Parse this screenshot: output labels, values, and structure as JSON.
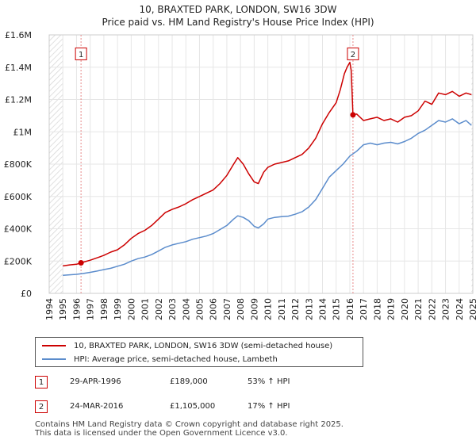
{
  "chart_data": {
    "type": "line",
    "title": "10, BRAXTED PARK, LONDON, SW16 3DW",
    "subtitle": "Price paid vs. HM Land Registry's House Price Index (HPI)",
    "xlim": [
      1994,
      2025
    ],
    "ylim": [
      0,
      1600000
    ],
    "x_ticks": [
      "1994",
      "1995",
      "1996",
      "1997",
      "1998",
      "1999",
      "2000",
      "2001",
      "2002",
      "2003",
      "2004",
      "2005",
      "2006",
      "2007",
      "2008",
      "2009",
      "2010",
      "2011",
      "2012",
      "2013",
      "2014",
      "2015",
      "2016",
      "2017",
      "2018",
      "2019",
      "2020",
      "2021",
      "2022",
      "2023",
      "2024",
      "2025"
    ],
    "y_ticks": [
      {
        "value": 0,
        "label": "£0"
      },
      {
        "value": 200000,
        "label": "£200K"
      },
      {
        "value": 400000,
        "label": "£400K"
      },
      {
        "value": 600000,
        "label": "£600K"
      },
      {
        "value": 800000,
        "label": "£800K"
      },
      {
        "value": 1000000,
        "label": "£1M"
      },
      {
        "value": 1200000,
        "label": "£1.2M"
      },
      {
        "value": 1400000,
        "label": "£1.4M"
      },
      {
        "value": 1600000,
        "label": "£1.6M"
      }
    ],
    "series": [
      {
        "name": "10, BRAXTED PARK, LONDON, SW16 3DW (semi-detached house)",
        "color": "#cc0000",
        "x": [
          1995.0,
          1995.5,
          1996.0,
          1996.33,
          1996.6,
          1997.0,
          1997.5,
          1998.0,
          1998.5,
          1999.0,
          1999.5,
          2000.0,
          2000.5,
          2001.0,
          2001.5,
          2002.0,
          2002.5,
          2003.0,
          2003.5,
          2004.0,
          2004.5,
          2005.0,
          2005.5,
          2006.0,
          2006.5,
          2007.0,
          2007.5,
          2007.8,
          2008.2,
          2008.6,
          2009.0,
          2009.3,
          2009.7,
          2010.0,
          2010.5,
          2011.0,
          2011.5,
          2012.0,
          2012.5,
          2013.0,
          2013.5,
          2014.0,
          2014.5,
          2015.0,
          2015.3,
          2015.6,
          2015.8,
          2016.0,
          2016.1,
          2016.23,
          2016.5,
          2017.0,
          2017.5,
          2018.0,
          2018.5,
          2019.0,
          2019.5,
          2020.0,
          2020.5,
          2021.0,
          2021.5,
          2022.0,
          2022.5,
          2023.0,
          2023.5,
          2024.0,
          2024.5,
          2024.9
        ],
        "y": [
          170000,
          176000,
          180000,
          189000,
          196000,
          205000,
          220000,
          235000,
          255000,
          270000,
          300000,
          340000,
          370000,
          390000,
          420000,
          460000,
          500000,
          520000,
          535000,
          555000,
          580000,
          600000,
          620000,
          640000,
          680000,
          730000,
          800000,
          840000,
          800000,
          740000,
          690000,
          680000,
          750000,
          780000,
          800000,
          810000,
          820000,
          840000,
          860000,
          900000,
          960000,
          1050000,
          1120000,
          1180000,
          1260000,
          1360000,
          1400000,
          1430000,
          1380000,
          1105000,
          1110000,
          1070000,
          1080000,
          1090000,
          1070000,
          1080000,
          1060000,
          1090000,
          1100000,
          1130000,
          1190000,
          1170000,
          1240000,
          1230000,
          1250000,
          1220000,
          1240000,
          1230000
        ]
      },
      {
        "name": "HPI: Average price, semi-detached house, Lambeth",
        "color": "#5b8ccc",
        "x": [
          1995.0,
          1995.5,
          1996.0,
          1996.5,
          1997.0,
          1997.5,
          1998.0,
          1998.5,
          1999.0,
          1999.5,
          2000.0,
          2000.5,
          2001.0,
          2001.5,
          2002.0,
          2002.5,
          2003.0,
          2003.5,
          2004.0,
          2004.5,
          2005.0,
          2005.5,
          2006.0,
          2006.5,
          2007.0,
          2007.5,
          2007.8,
          2008.2,
          2008.6,
          2009.0,
          2009.3,
          2009.7,
          2010.0,
          2010.5,
          2011.0,
          2011.5,
          2012.0,
          2012.5,
          2013.0,
          2013.5,
          2014.0,
          2014.5,
          2015.0,
          2015.5,
          2016.0,
          2016.5,
          2017.0,
          2017.5,
          2018.0,
          2018.5,
          2019.0,
          2019.5,
          2020.0,
          2020.5,
          2021.0,
          2021.5,
          2022.0,
          2022.5,
          2023.0,
          2023.5,
          2024.0,
          2024.5,
          2024.9
        ],
        "y": [
          112000,
          115000,
          118000,
          123000,
          130000,
          138000,
          147000,
          155000,
          168000,
          180000,
          200000,
          215000,
          225000,
          240000,
          262000,
          285000,
          300000,
          310000,
          320000,
          335000,
          345000,
          355000,
          370000,
          395000,
          420000,
          460000,
          480000,
          470000,
          450000,
          415000,
          405000,
          430000,
          460000,
          470000,
          475000,
          478000,
          490000,
          505000,
          535000,
          580000,
          650000,
          720000,
          760000,
          800000,
          850000,
          880000,
          920000,
          930000,
          920000,
          930000,
          935000,
          925000,
          940000,
          960000,
          990000,
          1010000,
          1040000,
          1070000,
          1060000,
          1080000,
          1050000,
          1070000,
          1040000
        ]
      }
    ],
    "markers": [
      {
        "label": "1",
        "x": 1996.33,
        "y": 189000,
        "box_value": 1480000
      },
      {
        "label": "2",
        "x": 2016.23,
        "y": 1105000,
        "box_value": 1480000
      }
    ],
    "hatch_regions": [
      "left-of-1995",
      "right-of-2024.9"
    ]
  },
  "legend": {
    "series1": "10, BRAXTED PARK, LONDON, SW16 3DW (semi-detached house)",
    "series2": "HPI: Average price, semi-detached house, Lambeth",
    "color1": "#cc0000",
    "color2": "#5b8ccc"
  },
  "transactions": [
    {
      "num": "1",
      "date": "29-APR-1996",
      "price": "£189,000",
      "hpi": "53% ↑ HPI"
    },
    {
      "num": "2",
      "date": "24-MAR-2016",
      "price": "£1,105,000",
      "hpi": "17% ↑ HPI"
    }
  ],
  "footer": {
    "line1": "Contains HM Land Registry data © Crown copyright and database right 2025.",
    "line2": "This data is licensed under the Open Government Licence v3.0."
  }
}
